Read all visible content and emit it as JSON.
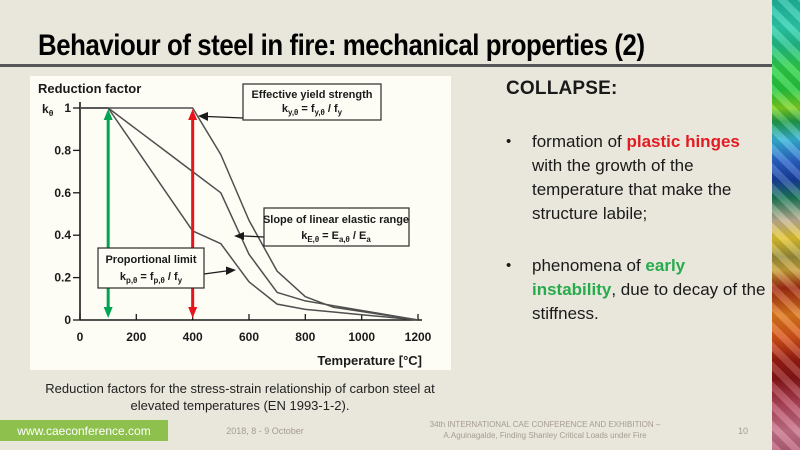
{
  "slide": {
    "title": "Behaviour of steel in fire: mechanical properties (2)",
    "caption_line1": "Reduction factors for the stress-strain relationship of carbon steel at",
    "caption_line2": "elevated temperatures (EN 1993-1-2)."
  },
  "right_panel": {
    "heading": "COLLAPSE:",
    "bullet_glyph": "•",
    "bullets": [
      {
        "segments": [
          {
            "t": "formation of ",
            "c": "plain"
          },
          {
            "t": "plastic hinges",
            "c": "red"
          },
          {
            "t": " with the growth of the temperature that make the structure labile;",
            "c": "plain"
          }
        ]
      },
      {
        "segments": [
          {
            "t": "phenomena of ",
            "c": "plain"
          },
          {
            "t": "early instability",
            "c": "green"
          },
          {
            "t": ", due to decay of the stiffness.",
            "c": "plain"
          }
        ]
      }
    ]
  },
  "chart_data": {
    "type": "line",
    "title": "Reduction factor",
    "xlabel": "Temperature [°C]",
    "ylabel_formula": [
      [
        "k",
        false
      ],
      [
        "θ",
        true
      ]
    ],
    "xlim": [
      0,
      1200
    ],
    "ylim": [
      0,
      1
    ],
    "grid": false,
    "xticks": [
      0,
      200,
      400,
      600,
      800,
      1000,
      1200
    ],
    "yticks": [
      1,
      0.8,
      0.6,
      0.4,
      0.2,
      0
    ],
    "x": [
      0,
      100,
      200,
      300,
      400,
      500,
      600,
      700,
      800,
      900,
      1000,
      1100,
      1200
    ],
    "series": [
      {
        "name": "Effective yield strength",
        "values": [
          1,
          1,
          1,
          1,
          1,
          0.78,
          0.47,
          0.23,
          0.11,
          0.06,
          0.04,
          0.02,
          0
        ]
      },
      {
        "name": "Slope of linear elastic range",
        "values": [
          1,
          1,
          0.9,
          0.8,
          0.7,
          0.6,
          0.31,
          0.13,
          0.09,
          0.0675,
          0.045,
          0.0225,
          0
        ]
      },
      {
        "name": "Proportional limit",
        "values": [
          1,
          1,
          0.807,
          0.613,
          0.42,
          0.36,
          0.18,
          0.075,
          0.05,
          0.0375,
          0.025,
          0.0125,
          0
        ]
      }
    ],
    "annotations": [
      {
        "label": "Effective yield strength",
        "formula": [
          [
            "k",
            false
          ],
          [
            "y,θ",
            true
          ],
          [
            " = f",
            false
          ],
          [
            "y,θ",
            true
          ],
          [
            " / f",
            false
          ],
          [
            "y",
            true
          ]
        ]
      },
      {
        "label": "Slope of linear elastic range",
        "formula": [
          [
            "k",
            false
          ],
          [
            "E,θ",
            true
          ],
          [
            " = E",
            false
          ],
          [
            "a,θ",
            true
          ],
          [
            " / E",
            false
          ],
          [
            "a",
            true
          ]
        ]
      },
      {
        "label": "Proportional limit",
        "formula": [
          [
            "k",
            false
          ],
          [
            "p,θ",
            true
          ],
          [
            " = f",
            false
          ],
          [
            "p,θ",
            true
          ],
          [
            " / f",
            false
          ],
          [
            "y",
            true
          ]
        ]
      }
    ],
    "markers": [
      {
        "name": "green-range-arrow",
        "x": 100,
        "color": "#00a551"
      },
      {
        "name": "red-range-arrow",
        "x": 400,
        "color": "#e8141c"
      }
    ]
  },
  "footer": {
    "site": "www.caeconference.com",
    "date": "2018, 8 -  9 October",
    "conference_line1": "34th INTERNATIONAL CAE CONFERENCE AND EXHIBITION –",
    "conference_line2": "A.Aguinagalde, Finding Shanley Critical Loads under Fire",
    "page": "10"
  },
  "colors": {
    "red": "#e31b22",
    "green": "#26ab4d",
    "arrow_red": "#e8141c",
    "arrow_green": "#00a551",
    "footer_green": "#8ec04e",
    "background": "#e9e6db"
  }
}
